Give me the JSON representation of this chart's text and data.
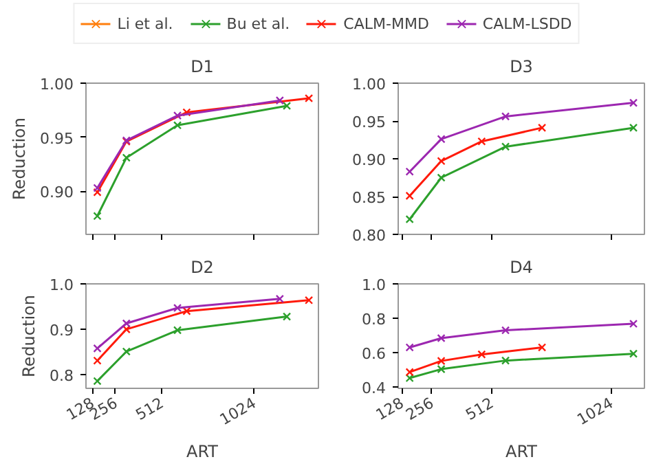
{
  "chart_data": [
    {
      "type": "line",
      "title": "D1",
      "ylabel": "Reduction",
      "legend": "top",
      "marker": "cross",
      "grid": false,
      "tick_labels": "y",
      "xlim": [
        93,
        1381
      ],
      "xticks": [
        128,
        256,
        512,
        1024
      ],
      "ylim": [
        0.86,
        1.0
      ],
      "yticks": [
        {
          "value": 0.9,
          "label": "0.90"
        },
        0.95,
        {
          "value": 1.0,
          "label": "1.00"
        }
      ],
      "series": [
        {
          "name": "Li et al.",
          "color": "#ff7f0e",
          "values": [
            null,
            null,
            null,
            null
          ]
        },
        {
          "name": "Bu et al.",
          "color": "#2ca02c",
          "x": [
            156,
            317,
            600,
            1206
          ],
          "values": [
            0.877,
            0.931,
            0.961,
            0.979
          ]
        },
        {
          "name": "CALM-MMD",
          "color": "#ff1a0a",
          "x": [
            156,
            317,
            651,
            1328
          ],
          "values": [
            0.899,
            0.946,
            0.973,
            0.986
          ]
        },
        {
          "name": "CALM-LSDD",
          "color": "#9c27b0",
          "x": [
            156,
            317,
            600,
            1167
          ],
          "values": [
            0.903,
            0.947,
            0.97,
            0.984
          ]
        }
      ]
    },
    {
      "type": "line",
      "title": "D3",
      "marker": "cross",
      "grid": false,
      "tick_labels": "y",
      "xlim": [
        113,
        1166
      ],
      "xticks": [
        128,
        256,
        512,
        1024
      ],
      "ylim": [
        0.8,
        1.0
      ],
      "yticks": [
        {
          "value": 0.8,
          "label": "0.80"
        },
        0.85,
        {
          "value": 0.9,
          "label": "0.90"
        },
        0.95,
        {
          "value": 1.0,
          "label": "1.00"
        }
      ],
      "series": [
        {
          "name": "Bu et al.",
          "color": "#2ca02c",
          "x": [
            162,
            297,
            572,
            1119
          ],
          "values": [
            0.82,
            0.875,
            0.916,
            0.941
          ]
        },
        {
          "name": "CALM-MMD",
          "color": "#ff1a0a",
          "x": [
            162,
            297,
            470,
            728
          ],
          "values": [
            0.851,
            0.897,
            0.923,
            0.941
          ]
        },
        {
          "name": "CALM-LSDD",
          "color": "#9c27b0",
          "x": [
            162,
            297,
            572,
            1119
          ],
          "values": [
            0.883,
            0.926,
            0.956,
            0.974
          ]
        }
      ]
    },
    {
      "type": "line",
      "title": "D2",
      "xlabel": "ART",
      "ylabel": "Reduction",
      "marker": "cross",
      "grid": false,
      "xlim": [
        93,
        1381
      ],
      "xticks": [
        128,
        256,
        512,
        1024
      ],
      "ylim": [
        0.77,
        1.0
      ],
      "yticks": [
        0.8,
        0.9,
        {
          "value": 1.0,
          "label": "1.0"
        }
      ],
      "series": [
        {
          "name": "Bu et al.",
          "color": "#2ca02c",
          "x": [
            156,
            317,
            600,
            1206
          ],
          "values": [
            0.786,
            0.851,
            0.898,
            0.928
          ]
        },
        {
          "name": "CALM-MMD",
          "color": "#ff1a0a",
          "x": [
            156,
            317,
            651,
            1328
          ],
          "values": [
            0.831,
            0.9,
            0.94,
            0.964
          ]
        },
        {
          "name": "CALM-LSDD",
          "color": "#9c27b0",
          "x": [
            156,
            317,
            600,
            1167
          ],
          "values": [
            0.858,
            0.913,
            0.947,
            0.967
          ]
        }
      ]
    },
    {
      "type": "line",
      "title": "D4",
      "xlabel": "ART",
      "marker": "cross",
      "grid": false,
      "xlim": [
        113,
        1166
      ],
      "xticks": [
        128,
        256,
        512,
        1024
      ],
      "ylim": [
        0.39,
        1.0
      ],
      "yticks": [
        0.4,
        0.6,
        0.8,
        {
          "value": 1.0,
          "label": "1.0"
        }
      ],
      "series": [
        {
          "name": "Bu et al.",
          "color": "#2ca02c",
          "x": [
            162,
            297,
            572,
            1119
          ],
          "values": [
            0.45,
            0.502,
            0.552,
            0.592
          ]
        },
        {
          "name": "CALM-MMD",
          "color": "#ff1a0a",
          "x": [
            162,
            297,
            470,
            728
          ],
          "values": [
            0.485,
            0.55,
            0.588,
            0.629
          ]
        },
        {
          "name": "CALM-LSDD",
          "color": "#9c27b0",
          "x": [
            162,
            297,
            572,
            1119
          ],
          "values": [
            0.629,
            0.683,
            0.729,
            0.767
          ]
        }
      ]
    }
  ]
}
